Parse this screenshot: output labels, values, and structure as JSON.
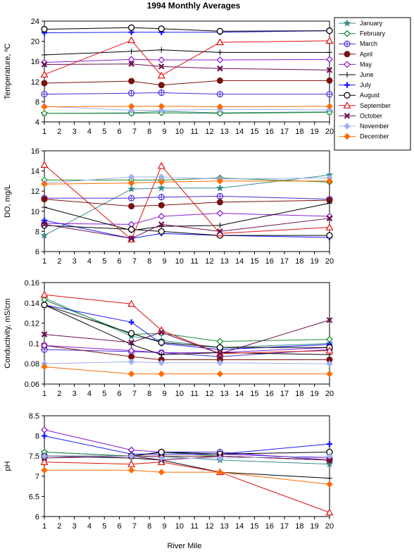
{
  "chart_data": {
    "type": "line",
    "title": "1994 Monthly Averages",
    "xlabel": "River Mile",
    "x_ticks": [
      1,
      2,
      3,
      4,
      5,
      6,
      7,
      8,
      9,
      10,
      11,
      12,
      13,
      14,
      15,
      16,
      17,
      18,
      19,
      20
    ],
    "x": [
      1,
      6.8,
      8.8,
      12.7,
      20
    ],
    "xlim": [
      1,
      20
    ],
    "legend_position": "top-right",
    "grid": false,
    "series_styles": [
      {
        "name": "January",
        "color": "#3a8c8c",
        "marker": "star"
      },
      {
        "name": "February",
        "color": "#1e8a3c",
        "marker": "diamond-open"
      },
      {
        "name": "March",
        "color": "#4a2bd6",
        "marker": "circle-cross"
      },
      {
        "name": "April",
        "color": "#7a1010",
        "marker": "circle-filled"
      },
      {
        "name": "May",
        "color": "#8a1fd0",
        "marker": "diamond-open"
      },
      {
        "name": "June",
        "color": "#000000",
        "marker": "plus"
      },
      {
        "name": "July",
        "color": "#1a1aff",
        "marker": "plus-bold"
      },
      {
        "name": "August",
        "color": "#000000",
        "marker": "circle-open"
      },
      {
        "name": "September",
        "color": "#e01010",
        "marker": "triangle-open"
      },
      {
        "name": "October",
        "color": "#6b1050",
        "marker": "x"
      },
      {
        "name": "November",
        "color": "#a0b0f0",
        "marker": "diamond-filled"
      },
      {
        "name": "December",
        "color": "#ff6a00",
        "marker": "diamond-filled"
      }
    ],
    "panels": [
      {
        "ylabel": "Temperature, ºC",
        "ylim": [
          4,
          24
        ],
        "yticks": [
          "4",
          "8",
          "12",
          "16",
          "20",
          "24"
        ],
        "ytick_values": [
          4,
          8,
          12,
          16,
          20,
          24
        ],
        "series": [
          {
            "name": "January",
            "values": [
              5.7,
              5.8,
              6.1,
              5.8,
              6.0
            ]
          },
          {
            "name": "February",
            "values": [
              5.7,
              5.7,
              5.8,
              5.7,
              5.9
            ]
          },
          {
            "name": "March",
            "values": [
              9.5,
              9.7,
              9.8,
              9.5,
              9.5
            ]
          },
          {
            "name": "April",
            "values": [
              11.7,
              12.1,
              11.3,
              12.2,
              12.2
            ]
          },
          {
            "name": "May",
            "values": [
              15.8,
              16.4,
              16.3,
              16.3,
              16.4
            ]
          },
          {
            "name": "June",
            "values": [
              17.3,
              18.0,
              18.3,
              17.8,
              17.8
            ]
          },
          {
            "name": "July",
            "values": [
              21.7,
              21.8,
              21.8,
              21.8,
              22.1
            ]
          },
          {
            "name": "August",
            "values": [
              22.4,
              22.7,
              22.5,
              22.0,
              22.1
            ]
          },
          {
            "name": "September",
            "values": [
              13.4,
              20.2,
              13.2,
              19.8,
              20.1
            ]
          },
          {
            "name": "October",
            "values": [
              15.4,
              15.5,
              15.0,
              14.6,
              14.3
            ]
          },
          {
            "name": "November",
            "values": [
              7.1,
              6.3,
              6.3,
              6.5,
              6.4
            ]
          },
          {
            "name": "December",
            "values": [
              7.0,
              7.1,
              7.1,
              7.0,
              7.1
            ]
          }
        ]
      },
      {
        "ylabel": "DO, mg/L",
        "ylim": [
          6,
          16
        ],
        "yticks": [
          "6",
          "8",
          "10",
          "12",
          "14",
          "16"
        ],
        "ytick_values": [
          6,
          8,
          10,
          12,
          14,
          16
        ],
        "series": [
          {
            "name": "January",
            "values": [
              7.6,
              12.2,
              12.3,
              12.3,
              13.6
            ]
          },
          {
            "name": "February",
            "values": [
              13.1,
              13.1,
              13.1,
              13.3,
              12.9
            ]
          },
          {
            "name": "March",
            "values": [
              11.3,
              11.3,
              11.4,
              11.5,
              11.2
            ]
          },
          {
            "name": "April",
            "values": [
              11.2,
              10.5,
              10.6,
              10.9,
              11.1
            ]
          },
          {
            "name": "May",
            "values": [
              8.8,
              8.7,
              9.5,
              9.8,
              9.5
            ]
          },
          {
            "name": "June",
            "values": [
              10.4,
              8.1,
              8.5,
              8.6,
              10.8
            ]
          },
          {
            "name": "July",
            "values": [
              9.1,
              7.3,
              7.8,
              7.6,
              7.4
            ]
          },
          {
            "name": "August",
            "values": [
              8.6,
              8.2,
              8.0,
              7.6,
              7.6
            ]
          },
          {
            "name": "September",
            "values": [
              14.6,
              7.2,
              14.5,
              7.8,
              8.4
            ]
          },
          {
            "name": "October",
            "values": [
              8.7,
              7.3,
              8.7,
              8.0,
              9.3
            ]
          },
          {
            "name": "November",
            "values": [
              12.8,
              13.4,
              13.4,
              13.2,
              13.3
            ]
          },
          {
            "name": "December",
            "values": [
              12.7,
              12.8,
              12.9,
              13.0,
              13.0
            ]
          }
        ]
      },
      {
        "ylabel": "Conductivity, mS/cm",
        "ylim": [
          0.06,
          0.16
        ],
        "yticks": [
          "0.06",
          "0.08",
          "0.1",
          "0.12",
          "0.14",
          "0.16"
        ],
        "ytick_values": [
          0.06,
          0.08,
          0.1,
          0.12,
          0.14,
          0.16
        ],
        "series": [
          {
            "name": "January",
            "values": [
              0.145,
              0.107,
              0.103,
              0.096,
              0.1
            ]
          },
          {
            "name": "February",
            "values": [
              0.143,
              0.109,
              0.11,
              0.102,
              0.104
            ]
          },
          {
            "name": "March",
            "values": [
              0.094,
              0.092,
              0.091,
              0.087,
              0.094
            ]
          },
          {
            "name": "April",
            "values": [
              0.098,
              0.087,
              0.084,
              0.084,
              0.084
            ]
          },
          {
            "name": "May",
            "values": [
              0.098,
              0.093,
              0.091,
              0.091,
              0.096
            ]
          },
          {
            "name": "June",
            "values": [
              0.138,
              0.099,
              0.089,
              0.091,
              0.089
            ]
          },
          {
            "name": "July",
            "values": [
              0.138,
              0.121,
              0.1,
              0.094,
              0.099
            ]
          },
          {
            "name": "August",
            "values": [
              0.138,
              0.11,
              0.101,
              0.096,
              0.096
            ]
          },
          {
            "name": "September",
            "values": [
              0.148,
              0.139,
              0.113,
              0.09,
              0.093
            ]
          },
          {
            "name": "October",
            "values": [
              0.109,
              0.101,
              0.111,
              0.09,
              0.123
            ]
          },
          {
            "name": "November",
            "values": [
              0.08,
              0.082,
              0.081,
              0.081,
              0.08
            ]
          },
          {
            "name": "December",
            "values": [
              0.077,
              0.07,
              0.07,
              0.07,
              0.07
            ]
          }
        ]
      },
      {
        "ylabel": "pH",
        "ylim": [
          6,
          8.5
        ],
        "yticks": [
          "6",
          "6.5",
          "7",
          "7.5",
          "8",
          "8.5"
        ],
        "ytick_values": [
          6,
          6.5,
          7,
          7.5,
          8,
          8.5
        ],
        "series": [
          {
            "name": "January",
            "values": [
              7.6,
              7.5,
              7.5,
              7.4,
              7.3
            ]
          },
          {
            "name": "February",
            "values": [
              7.6,
              7.5,
              7.6,
              7.5,
              7.4
            ]
          },
          {
            "name": "March",
            "values": [
              7.5,
              7.5,
              7.6,
              7.6,
              7.4
            ]
          },
          {
            "name": "April",
            "values": [
              7.5,
              7.5,
              7.5,
              7.5,
              7.4
            ]
          },
          {
            "name": "May",
            "values": [
              8.15,
              7.65,
              7.6,
              7.55,
              7.45
            ]
          },
          {
            "name": "June",
            "values": [
              7.5,
              7.45,
              7.4,
              7.1,
              6.95
            ]
          },
          {
            "name": "July",
            "values": [
              8.0,
              7.55,
              7.55,
              7.55,
              7.8
            ]
          },
          {
            "name": "August",
            "values": [
              7.5,
              7.5,
              7.6,
              7.55,
              7.6
            ]
          },
          {
            "name": "September",
            "values": [
              7.35,
              7.3,
              7.35,
              7.1,
              6.1
            ]
          },
          {
            "name": "October",
            "values": [
              7.45,
              7.5,
              7.4,
              7.5,
              7.4
            ]
          },
          {
            "name": "November",
            "values": [
              7.5,
              7.5,
              7.45,
              7.45,
              7.5
            ]
          },
          {
            "name": "December",
            "values": [
              7.15,
              7.15,
              7.1,
              7.1,
              6.8
            ]
          }
        ]
      }
    ]
  }
}
